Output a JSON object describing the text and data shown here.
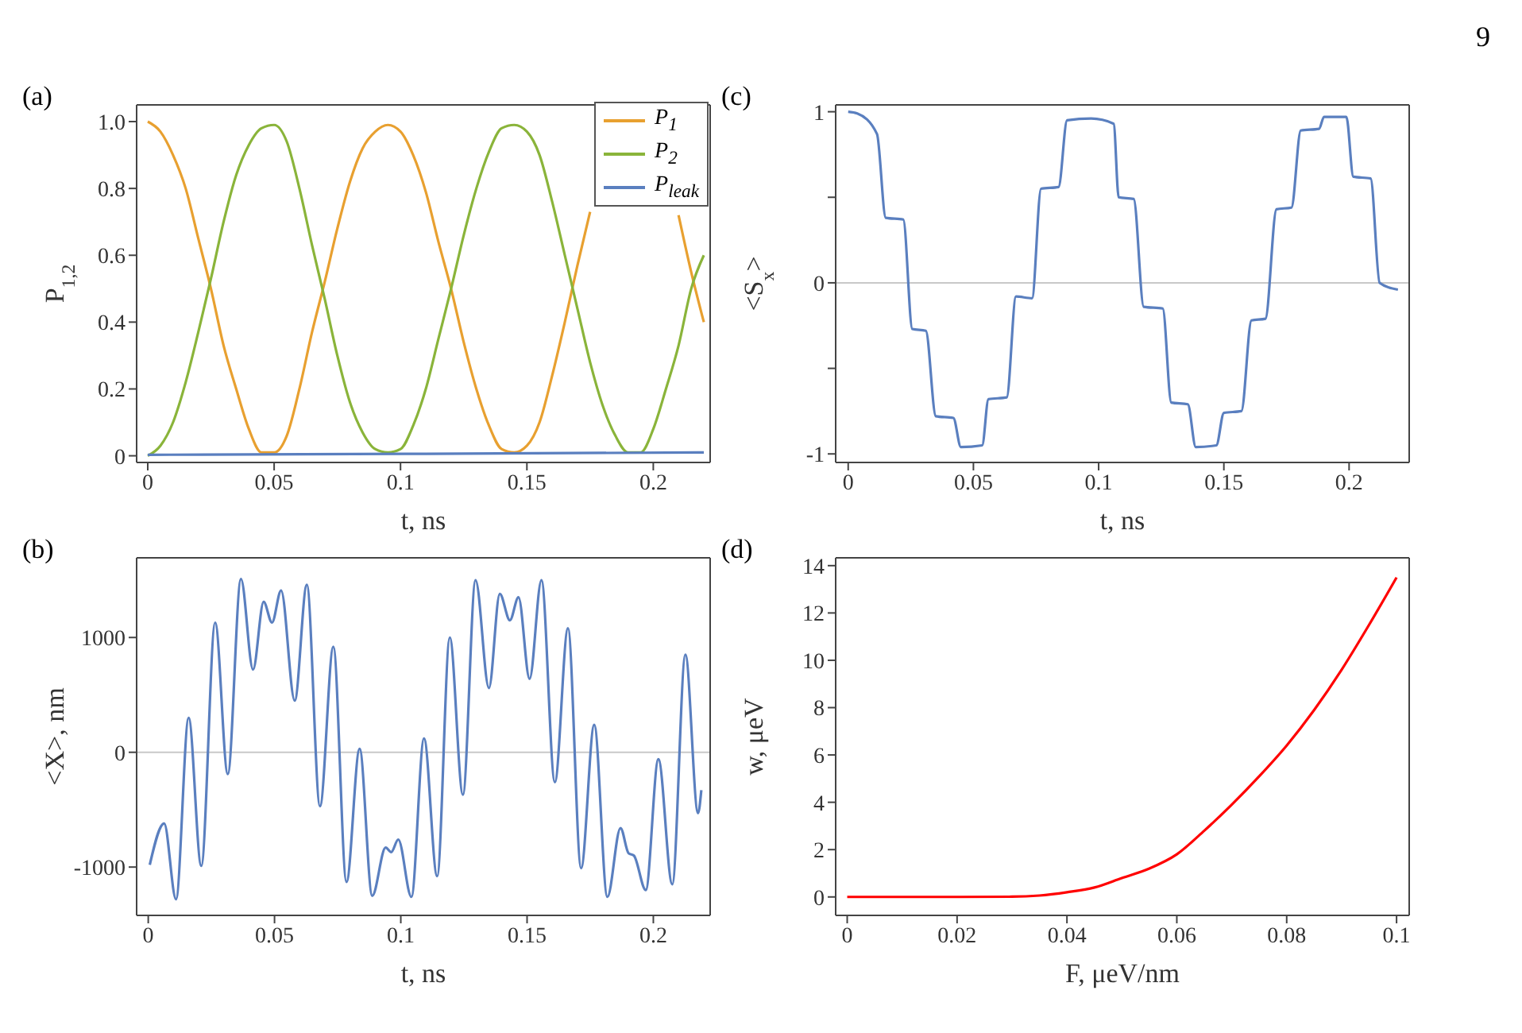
{
  "chart_data": [
    {
      "type": "line",
      "title": "(a)",
      "xlabel": "t, ns",
      "ylabel": "P$_{1,2}$",
      "legend": "top right",
      "xlim": [
        -0.0044,
        0.2225
      ],
      "ylim": [
        -0.02,
        1.05
      ],
      "xticks": [
        0,
        0.05,
        0.1,
        0.15,
        0.2
      ],
      "yticks": [
        0,
        0.2,
        0.4,
        0.6,
        0.8,
        {
          "value": 1,
          "label": "1.0"
        }
      ],
      "x": [
        0,
        0.005,
        0.01,
        0.015,
        0.02,
        0.025,
        0.03,
        0.035,
        0.04,
        0.045,
        0.05,
        0.055,
        0.06,
        0.065,
        0.07,
        0.075,
        0.08,
        0.085,
        0.09,
        0.095,
        0.1,
        0.105,
        0.11,
        0.115,
        0.12,
        0.125,
        0.13,
        0.135,
        0.14,
        0.145,
        0.15,
        0.155,
        0.16,
        0.165,
        0.17,
        0.175,
        0.18,
        0.185,
        0.19,
        0.195,
        0.2,
        0.205,
        0.21,
        0.215,
        0.22
      ],
      "series": [
        {
          "name": "P$_{1}$",
          "color": "#e8a030",
          "values": [
            1.0,
            0.97,
            0.9,
            0.8,
            0.65,
            0.5,
            0.33,
            0.2,
            0.08,
            0.01,
            0.01,
            0.06,
            0.2,
            0.37,
            0.52,
            0.68,
            0.82,
            0.92,
            0.97,
            0.99,
            0.97,
            0.9,
            0.79,
            0.64,
            0.5,
            0.34,
            0.2,
            0.09,
            0.02,
            0.01,
            0.03,
            0.1,
            0.24,
            0.4,
            0.57,
            0.73,
            null,
            null,
            null,
            null,
            null,
            null,
            0.72,
            0.55,
            0.4
          ]
        },
        {
          "name": "P$_{2}$",
          "color": "#8ab43a",
          "values": [
            0,
            0.03,
            0.1,
            0.22,
            0.37,
            0.53,
            0.7,
            0.84,
            0.93,
            0.98,
            0.99,
            0.94,
            0.8,
            0.63,
            0.47,
            0.3,
            0.16,
            0.07,
            0.02,
            0.01,
            0.02,
            0.09,
            0.2,
            0.35,
            0.5,
            0.66,
            0.8,
            0.91,
            0.98,
            0.99,
            0.97,
            0.9,
            0.76,
            0.6,
            0.44,
            0.28,
            0.15,
            0.06,
            0.01,
            0.01,
            0.08,
            0.2,
            0.33,
            0.5,
            0.6
          ]
        },
        {
          "name": "P$_{leak}$",
          "color": "#5a7fbf",
          "x": [
            0,
            0.11,
            0.22
          ],
          "values": [
            0.003,
            0.006,
            0.01
          ]
        }
      ]
    },
    {
      "type": "line",
      "title": "(c)",
      "xlabel": "t, ns",
      "ylabel": "<S$_{x}$>",
      "annotations": [
        "9"
      ],
      "xlim": [
        -0.005,
        0.224
      ],
      "ylim": [
        -1.05,
        1.04
      ],
      "xticks": [
        0,
        0.05,
        0.1,
        0.15,
        0.2
      ],
      "yticks": [
        -1,
        {
          "value": -0.5,
          "label": null
        },
        0,
        {
          "value": 0.5,
          "label": null
        },
        1
      ],
      "ref_lines": [
        {
          "axis": "y",
          "value": 0,
          "color": "#c8c8c8"
        }
      ],
      "x": [
        0,
        0.0036,
        0.0115,
        0.015,
        0.022,
        0.0256,
        0.031,
        0.035,
        0.042,
        0.045,
        0.0535,
        0.056,
        0.0633,
        0.067,
        0.0734,
        0.077,
        0.084,
        0.0874,
        0.097,
        0.106,
        0.108,
        0.114,
        0.118,
        0.1256,
        0.129,
        0.1356,
        0.1388,
        0.147,
        0.15,
        0.157,
        0.161,
        0.1666,
        0.171,
        0.177,
        0.1807,
        0.188,
        0.19,
        0.1989,
        0.2017,
        0.2086,
        0.2122,
        0.2195
      ],
      "series": [
        {
          "color": "#5a7fbf",
          "values": [
            1.0,
            0.99,
            0.87,
            0.38,
            0.37,
            -0.27,
            -0.28,
            -0.78,
            -0.79,
            -0.96,
            -0.95,
            -0.68,
            -0.67,
            -0.08,
            -0.09,
            0.55,
            0.56,
            0.95,
            0.96,
            0.93,
            0.5,
            0.49,
            -0.14,
            -0.15,
            -0.7,
            -0.71,
            -0.96,
            -0.95,
            -0.76,
            -0.75,
            -0.22,
            -0.21,
            0.43,
            0.44,
            0.89,
            0.9,
            0.97,
            0.97,
            0.62,
            0.61,
            0.0,
            -0.04
          ]
        }
      ]
    },
    {
      "type": "line",
      "title": "(b)",
      "xlabel": "t, ns",
      "ylabel": "<X>, nm",
      "xlim": [
        -0.0046,
        0.2225
      ],
      "ylim": [
        -1421,
        1694
      ],
      "xticks": [
        0,
        0.05,
        0.1,
        0.15,
        0.2
      ],
      "yticks": [
        -1000,
        0,
        1000
      ],
      "ref_lines": [
        {
          "axis": "y",
          "value": 0,
          "color": "#c8c8c8"
        }
      ],
      "x": [
        0.0006,
        0.0063,
        0.011,
        0.016,
        0.021,
        0.0265,
        0.0315,
        0.0367,
        0.0415,
        0.0457,
        0.049,
        0.0526,
        0.058,
        0.0628,
        0.068,
        0.0733,
        0.0785,
        0.0837,
        0.0887,
        0.094,
        0.0962,
        0.099,
        0.1042,
        0.1092,
        0.1144,
        0.1194,
        0.1246,
        0.1296,
        0.1349,
        0.1392,
        0.1432,
        0.1466,
        0.151,
        0.1557,
        0.161,
        0.1662,
        0.1714,
        0.1766,
        0.1818,
        0.187,
        0.1902,
        0.1923,
        0.197,
        0.202,
        0.2075,
        0.2127,
        0.2177,
        0.219
      ],
      "series": [
        {
          "color": "#5a7fbf",
          "values": [
            -980,
            -620,
            -1280,
            300,
            -990,
            1130,
            -190,
            1510,
            720,
            1310,
            1130,
            1410,
            450,
            1460,
            -470,
            920,
            -1130,
            30,
            -1250,
            -830,
            -870,
            -760,
            -1260,
            120,
            -1080,
            1000,
            -370,
            1500,
            560,
            1380,
            1150,
            1350,
            640,
            1500,
            -260,
            1080,
            -1010,
            240,
            -1260,
            -660,
            -880,
            -900,
            -1200,
            -60,
            -1150,
            850,
            -530,
            -330
          ]
        }
      ]
    },
    {
      "type": "line",
      "title": "(d)",
      "xlabel": "F, μeV/nm",
      "ylabel": "w, μeV",
      "xlim": [
        -0.0021,
        0.1023
      ],
      "ylim": [
        -0.78,
        14.33
      ],
      "xticks": [
        0,
        0.02,
        0.04,
        0.06,
        0.08,
        0.1
      ],
      "yticks": [
        0,
        2,
        4,
        6,
        8,
        10,
        12,
        14
      ],
      "x": [
        0,
        0.02,
        0.03,
        0.035,
        0.04,
        0.045,
        0.05,
        0.055,
        0.06,
        0.065,
        0.07,
        0.075,
        0.08,
        0.085,
        0.09,
        0.095,
        0.1
      ],
      "series": [
        {
          "color": "#ff0000",
          "values": [
            0,
            0,
            0.01,
            0.06,
            0.2,
            0.4,
            0.8,
            1.2,
            1.8,
            2.8,
            3.9,
            5.1,
            6.4,
            7.9,
            9.6,
            11.5,
            13.5
          ]
        }
      ]
    }
  ]
}
